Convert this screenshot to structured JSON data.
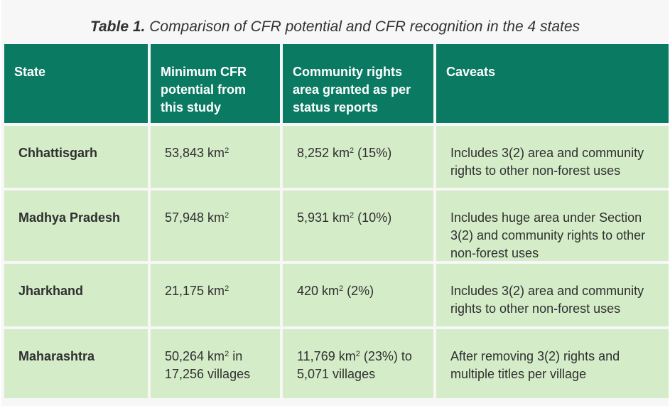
{
  "caption": {
    "label": "Table 1.",
    "text": "Comparison of CFR potential and CFR recognition in the 4 states"
  },
  "table": {
    "headers": [
      "State",
      "Minimum CFR potential from this study",
      "Community rights area granted as per status reports",
      "Caveats"
    ],
    "rows": [
      {
        "state": "Chhattisgarh",
        "potential": "53,843 km",
        "potential_suffix": "",
        "granted": "8,252 km",
        "granted_suffix": " (15%)",
        "caveat": "Includes 3(2) area and community rights to other non-forest uses"
      },
      {
        "state": "Madhya Pradesh",
        "potential": "57,948 km",
        "potential_suffix": "",
        "granted": "5,931 km",
        "granted_suffix": " (10%)",
        "caveat": "Includes huge area under Section 3(2) and community rights to other non-forest uses"
      },
      {
        "state": "Jharkhand",
        "potential": "21,175 km",
        "potential_suffix": "",
        "granted": "420 km",
        "granted_suffix": " (2%)",
        "caveat": "Includes 3(2) area and community rights to other non-forest uses"
      },
      {
        "state": "Maharashtra",
        "potential": "50,264 km",
        "potential_suffix": " in 17,256 villages",
        "granted": "11,769 km",
        "granted_suffix": " (23%) to 5,071 villages",
        "caveat": "After removing 3(2) rights and multiple titles per village"
      }
    ]
  },
  "unit_exponent": "2"
}
